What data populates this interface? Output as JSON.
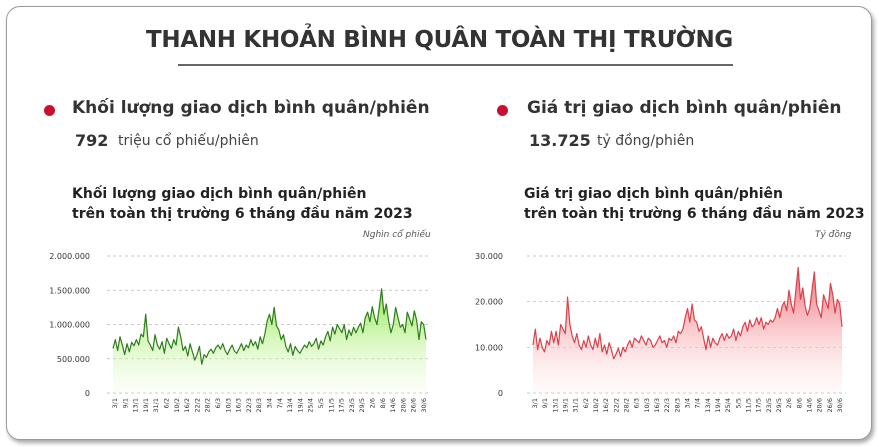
{
  "header": {
    "title": "THANH KHOẢN BÌNH QUÂN TOÀN THỊ TRƯỜNG"
  },
  "stats": {
    "volume": {
      "label": "Khối lượng giao dịch bình quân/phiên",
      "value": "792",
      "unit": "triệu cổ phiếu/phiên"
    },
    "value": {
      "label": "Giá trị giao dịch bình quân/phiên",
      "value": "13.725",
      "unit": "tỷ đồng/phiên"
    }
  },
  "colors": {
    "accent_dot": "#c8102e",
    "volume_line": "#2e7d1e",
    "value_line": "#d8424c"
  },
  "chart_data": [
    {
      "type": "area",
      "title_line1": "Khối lượng giao dịch bình quân/phiên",
      "title_line2": "trên toàn thị trường 6 tháng đầu năm 2023",
      "unit_note": "Nghìn cổ phiếu",
      "ylim": [
        0,
        2000000
      ],
      "y_ticks": [
        "2.000.000",
        "1.500.000",
        "1.000.000",
        "500.000",
        "0"
      ],
      "y_tick_values": [
        2000000,
        1500000,
        1000000,
        500000,
        0
      ],
      "x_tick_labels": [
        "3/1",
        "9/1",
        "13/1",
        "19/1",
        "31/1",
        "6/2",
        "10/2",
        "16/2",
        "22/2",
        "28/2",
        "6/3",
        "10/3",
        "16/3",
        "22/3",
        "28/3",
        "3/4",
        "7/4",
        "13/4",
        "19/4",
        "25/4",
        "5/5",
        "11/5",
        "17/5",
        "23/5",
        "29/5",
        "2/6",
        "8/6",
        "14/6",
        "20/6",
        "26/6",
        "30/6"
      ],
      "values": [
        650000,
        780000,
        620000,
        820000,
        700000,
        560000,
        720000,
        600000,
        740000,
        690000,
        780000,
        700000,
        860000,
        820000,
        1150000,
        760000,
        700000,
        620000,
        850000,
        700000,
        640000,
        750000,
        580000,
        800000,
        720000,
        650000,
        780000,
        700000,
        960000,
        820000,
        620000,
        680000,
        540000,
        720000,
        600000,
        480000,
        560000,
        680000,
        420000,
        560000,
        520000,
        600000,
        640000,
        580000,
        660000,
        700000,
        640000,
        720000,
        620000,
        560000,
        640000,
        700000,
        610000,
        580000,
        650000,
        720000,
        620000,
        700000,
        660000,
        780000,
        690000,
        750000,
        640000,
        820000,
        720000,
        860000,
        1050000,
        1150000,
        1000000,
        1250000,
        980000,
        920000,
        780000,
        850000,
        680000,
        600000,
        720000,
        550000,
        680000,
        620000,
        580000,
        640000,
        700000,
        660000,
        750000,
        680000,
        720000,
        800000,
        640000,
        760000,
        700000,
        820000,
        900000,
        760000,
        960000,
        860000,
        1000000,
        940000,
        880000,
        1000000,
        780000,
        920000,
        840000,
        960000,
        880000,
        960000,
        1020000,
        880000,
        1100000,
        1180000,
        1040000,
        1260000,
        1100000,
        1000000,
        1250000,
        1520000,
        1150000,
        1300000,
        1050000,
        880000,
        1000000,
        1250000,
        1100000,
        960000,
        1000000,
        880000,
        1180000,
        1080000,
        980000,
        1200000,
        1060000,
        780000,
        1040000,
        1000000,
        780000
      ]
    },
    {
      "type": "area",
      "title_line1": "Giá trị giao dịch bình quân/phiên",
      "title_line2": "trên toàn thị trường 6 tháng đầu năm 2023",
      "unit_note": "Tỷ đồng",
      "ylim": [
        0,
        30000
      ],
      "y_ticks": [
        "30.000",
        "20.000",
        "10.000",
        "0"
      ],
      "y_tick_values": [
        30000,
        20000,
        10000,
        0
      ],
      "x_tick_labels": [
        "3/1",
        "9/1",
        "13/1",
        "19/1",
        "31/1",
        "6/2",
        "10/2",
        "16/2",
        "22/2",
        "28/2",
        "6/3",
        "10/3",
        "16/3",
        "22/3",
        "28/3",
        "3/4",
        "7/4",
        "13/4",
        "19/4",
        "25/4",
        "5/5",
        "11/5",
        "17/5",
        "23/5",
        "29/5",
        "2/6",
        "8/6",
        "14/6",
        "20/6",
        "26/6",
        "30/6"
      ],
      "values": [
        10500,
        14000,
        9500,
        12000,
        10000,
        9000,
        11500,
        10500,
        13500,
        11000,
        13500,
        10500,
        15000,
        14000,
        13000,
        21000,
        15000,
        12500,
        11000,
        13000,
        10500,
        9500,
        11500,
        10000,
        12500,
        10500,
        9500,
        12000,
        10000,
        13000,
        9000,
        10500,
        8500,
        11000,
        9500,
        7500,
        8500,
        9800,
        8000,
        10000,
        9000,
        10500,
        11500,
        10000,
        12000,
        11500,
        11000,
        12500,
        11500,
        10500,
        12000,
        11500,
        10000,
        10500,
        11500,
        12500,
        11000,
        11500,
        10000,
        12000,
        11500,
        12500,
        11000,
        13500,
        13000,
        14000,
        16500,
        18500,
        15500,
        19500,
        16000,
        15500,
        13500,
        14500,
        12000,
        9500,
        12500,
        10000,
        12000,
        11000,
        10500,
        12000,
        13000,
        11500,
        13000,
        12000,
        12500,
        14000,
        11500,
        13500,
        12500,
        14500,
        15500,
        13500,
        16000,
        14500,
        15000,
        16500,
        15000,
        16500,
        14000,
        15500,
        15000,
        16000,
        15500,
        16500,
        18500,
        16500,
        19000,
        20000,
        18000,
        22500,
        19500,
        17500,
        22500,
        27500,
        20500,
        23000,
        19000,
        17000,
        18500,
        22500,
        26500,
        19500,
        18000,
        16500,
        21500,
        20000,
        18500,
        24000,
        21500,
        17500,
        20500,
        19500,
        14500
      ]
    }
  ]
}
